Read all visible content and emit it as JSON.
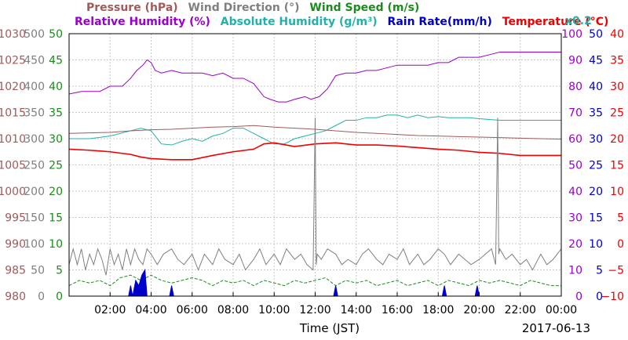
{
  "chart_data": {
    "type": "line",
    "xlabel": "Time (JST)",
    "date": "2017-06-13",
    "x_range_hours": [
      0,
      24
    ],
    "x_ticks": [
      "02:00",
      "04:00",
      "06:00",
      "08:00",
      "10:00",
      "12:00",
      "14:00",
      "16:00",
      "18:00",
      "20:00",
      "22:00",
      "00:00"
    ],
    "legend_row1": [
      {
        "text": "Pressure (hPa)",
        "color": "#a05a5a"
      },
      {
        "text": "Wind Direction (°)",
        "color": "#808080"
      },
      {
        "text": "Wind Speed (m/s)",
        "color": "#1a8c1a"
      }
    ],
    "legend_row2": [
      {
        "text": "Relative Humidity (%)",
        "color": "#9900cc"
      },
      {
        "text": "Absolute Humidity (g/m³)",
        "color": "#20b2aa"
      },
      {
        "text": "Rain Rate(mm/h)",
        "color": "#0000cc"
      },
      {
        "text": "Temperature (°C)",
        "color": "#ee0000"
      }
    ],
    "scale_note": "x0.2",
    "axes": {
      "pressure": {
        "color": "#a05a5a",
        "range": [
          980,
          1030
        ],
        "ticks": [
          "980",
          "985",
          "990",
          "995",
          "1000",
          "1005",
          "1010",
          "1015",
          "1020",
          "1025",
          "1030"
        ]
      },
      "wind_direction": {
        "color": "#808080",
        "range": [
          0,
          500
        ],
        "ticks": [
          "0",
          "50",
          "100",
          "150",
          "200",
          "250",
          "300",
          "350",
          "400",
          "450",
          "500"
        ]
      },
      "wind_speed": {
        "color": "#1a8c1a",
        "range": [
          0,
          50
        ],
        "ticks": [
          "0",
          "5",
          "10",
          "15",
          "20",
          "25",
          "30",
          "35",
          "40",
          "45",
          "50"
        ]
      },
      "humidity": {
        "color": "#9900cc",
        "range": [
          0,
          100
        ],
        "ticks": [
          "0",
          "10",
          "20",
          "30",
          "40",
          "50",
          "60",
          "70",
          "80",
          "90",
          "100"
        ]
      },
      "rain_rate": {
        "color": "#0000cc",
        "range": [
          0,
          50
        ],
        "ticks": [
          "0",
          "5",
          "10",
          "15",
          "20",
          "25",
          "30",
          "35",
          "40",
          "45",
          "50"
        ]
      },
      "temperature": {
        "color": "#ee0000",
        "range": [
          -10,
          40
        ],
        "ticks": [
          "−10",
          "−5",
          "0",
          "5",
          "10",
          "15",
          "20",
          "25",
          "30",
          "35",
          "40"
        ]
      }
    },
    "series": [
      {
        "name": "Relative Humidity (%)",
        "axis": "humidity",
        "color": "#9900cc",
        "x": [
          0,
          0.6,
          1.0,
          1.5,
          2.0,
          2.6,
          3.0,
          3.3,
          3.6,
          3.8,
          4.0,
          4.2,
          4.5,
          5.0,
          5.5,
          6.0,
          6.5,
          7.0,
          7.5,
          8.0,
          8.5,
          9.0,
          9.5,
          9.8,
          10.2,
          10.6,
          11.0,
          11.5,
          11.8,
          12.2,
          12.6,
          13.0,
          13.5,
          14.0,
          14.5,
          15.0,
          15.5,
          16.0,
          16.5,
          17.0,
          17.5,
          18.0,
          18.5,
          19.0,
          19.5,
          20.0,
          20.5,
          21.0,
          21.5,
          22.0,
          22.5,
          23.0,
          24.0
        ],
        "y": [
          77,
          78,
          78,
          78,
          80,
          80,
          83,
          86,
          88,
          90,
          89,
          86,
          85,
          86,
          85,
          85,
          85,
          84,
          85,
          83,
          83,
          81,
          76,
          75,
          74,
          74,
          75,
          76,
          75,
          76,
          79,
          84,
          85,
          85,
          86,
          86,
          87,
          88,
          88,
          88,
          88,
          89,
          89,
          91,
          91,
          91,
          92,
          93,
          93,
          93,
          93,
          93,
          93
        ]
      },
      {
        "name": "Absolute Humidity (g/m³)",
        "axis": "wind_speed",
        "scale": 0.2,
        "color": "#20b2aa",
        "x": [
          0,
          1.0,
          2.0,
          3.0,
          3.5,
          4.0,
          4.5,
          5.0,
          5.5,
          6.0,
          6.5,
          7.0,
          7.5,
          8.0,
          8.5,
          9.0,
          9.5,
          10.0,
          10.5,
          11.0,
          11.5,
          12.0,
          12.5,
          13.0,
          13.5,
          14.0,
          14.5,
          15.0,
          15.5,
          16.0,
          16.5,
          17.0,
          17.5,
          18.0,
          18.5,
          19.0,
          19.5,
          20.0,
          21.0,
          22.0,
          23.0,
          24.0
        ],
        "y": [
          30,
          30,
          30.5,
          31.5,
          32,
          31.5,
          29,
          28.8,
          29.5,
          30,
          29.5,
          30.5,
          31,
          32,
          32,
          31,
          30,
          29,
          29,
          30,
          30.5,
          31,
          31.5,
          32.5,
          33.5,
          33.5,
          34,
          34,
          34.5,
          34.5,
          34,
          34.5,
          34,
          34.2,
          34,
          34,
          34,
          33.8,
          33.5,
          33.5,
          33.5,
          33.5
        ]
      },
      {
        "name": "Pressure (hPa)",
        "axis": "pressure",
        "color": "#a05a5a",
        "x": [
          0,
          1,
          2,
          3,
          4,
          5,
          6,
          7,
          8,
          9,
          10,
          11,
          12,
          13,
          14,
          15,
          16,
          17,
          18,
          19,
          20,
          21,
          22,
          23,
          24
        ],
        "y": [
          1011.0,
          1011.1,
          1011.2,
          1011.5,
          1011.7,
          1011.8,
          1012.0,
          1012.2,
          1012.3,
          1012.5,
          1012.2,
          1012.0,
          1011.8,
          1011.5,
          1011.2,
          1011.0,
          1010.8,
          1010.6,
          1010.5,
          1010.4,
          1010.3,
          1010.2,
          1010.1,
          1010.0,
          1009.9
        ]
      },
      {
        "name": "Temperature (°C)",
        "axis": "temperature",
        "color": "#ee0000",
        "x": [
          0,
          1,
          2,
          3,
          3.5,
          4,
          5,
          6,
          7,
          8,
          9,
          9.5,
          10,
          11,
          12,
          13,
          14,
          15,
          16,
          17,
          18,
          19,
          20,
          21,
          22,
          23,
          24
        ],
        "y": [
          18.0,
          17.8,
          17.5,
          17.0,
          16.5,
          16.2,
          16.0,
          16.0,
          16.8,
          17.5,
          18.0,
          19.0,
          19.2,
          18.5,
          19.0,
          19.2,
          18.8,
          18.8,
          18.6,
          18.3,
          18.0,
          17.8,
          17.4,
          17.2,
          16.8,
          16.8,
          16.8
        ]
      },
      {
        "name": "Wind Direction (°)",
        "axis": "wind_direction",
        "color": "#808080",
        "x": [
          0,
          0.2,
          0.4,
          0.6,
          0.8,
          1.0,
          1.2,
          1.4,
          1.6,
          1.8,
          2.0,
          2.2,
          2.4,
          2.6,
          2.8,
          3.0,
          3.2,
          3.4,
          3.6,
          3.8,
          4.0,
          4.3,
          4.6,
          5.0,
          5.3,
          5.6,
          6.0,
          6.3,
          6.6,
          7.0,
          7.3,
          7.6,
          8.0,
          8.3,
          8.6,
          9.0,
          9.3,
          9.6,
          10.0,
          10.3,
          10.6,
          11.0,
          11.3,
          11.6,
          11.9,
          12.0,
          12.05,
          12.1,
          12.3,
          12.6,
          13.0,
          13.3,
          13.6,
          14.0,
          14.3,
          14.6,
          15.0,
          15.3,
          15.6,
          16.0,
          16.3,
          16.6,
          17.0,
          17.3,
          17.6,
          18.0,
          18.3,
          18.6,
          19.0,
          19.3,
          19.6,
          20.0,
          20.3,
          20.6,
          20.8,
          20.9,
          20.95,
          21.0,
          21.3,
          21.6,
          22.0,
          22.3,
          22.6,
          23.0,
          23.3,
          23.6,
          24.0
        ],
        "y": [
          60,
          90,
          60,
          90,
          50,
          80,
          60,
          90,
          70,
          40,
          90,
          60,
          80,
          50,
          90,
          60,
          90,
          70,
          60,
          90,
          80,
          60,
          80,
          90,
          70,
          60,
          80,
          50,
          80,
          60,
          90,
          70,
          60,
          80,
          50,
          70,
          90,
          60,
          80,
          60,
          90,
          70,
          80,
          60,
          50,
          340,
          60,
          80,
          70,
          90,
          80,
          60,
          70,
          60,
          80,
          90,
          70,
          60,
          80,
          70,
          90,
          60,
          80,
          60,
          70,
          90,
          80,
          60,
          80,
          70,
          60,
          70,
          80,
          90,
          60,
          340,
          80,
          90,
          70,
          80,
          60,
          70,
          50,
          80,
          60,
          70,
          90
        ]
      },
      {
        "name": "Wind Speed (m/s)",
        "axis": "wind_speed",
        "color": "#1a8c1a",
        "x": [
          0,
          0.5,
          1,
          1.5,
          2,
          2.5,
          3,
          3.5,
          4,
          4.5,
          5,
          5.5,
          6,
          6.5,
          7,
          7.5,
          8,
          8.5,
          9,
          9.5,
          10,
          10.5,
          11,
          11.5,
          12,
          12.5,
          13,
          13.5,
          14,
          14.5,
          15,
          15.5,
          16,
          16.5,
          17,
          17.5,
          18,
          18.5,
          19,
          19.5,
          20,
          20.5,
          21,
          21.5,
          22,
          22.5,
          23,
          23.5,
          24
        ],
        "y": [
          2,
          3,
          2.5,
          3,
          2,
          3.5,
          4,
          3,
          4,
          3,
          2.5,
          3,
          3.5,
          3,
          2,
          3,
          2.5,
          3,
          2,
          3,
          2.5,
          2,
          3,
          2.5,
          3,
          3.5,
          2,
          3,
          2.5,
          3,
          2,
          2.5,
          3,
          2,
          2.5,
          3,
          2,
          3,
          2.5,
          2,
          3,
          2.5,
          3,
          2.5,
          2,
          3,
          2.5,
          2,
          2
        ]
      },
      {
        "name": "Rain Rate(mm/h)",
        "axis": "rain_rate",
        "color": "#0000cc",
        "x": [
          2.9,
          3.0,
          3.1,
          3.25,
          3.4,
          3.55,
          3.7,
          3.8,
          4.9,
          5.0,
          5.1,
          12.9,
          13.0,
          13.1,
          18.2,
          18.3,
          18.4,
          19.8,
          19.9,
          20.0
        ],
        "y": [
          0,
          2,
          0,
          3,
          2,
          4,
          5,
          0,
          0,
          2,
          0,
          0,
          2,
          0,
          0,
          2,
          0,
          0,
          2,
          0
        ]
      }
    ]
  }
}
